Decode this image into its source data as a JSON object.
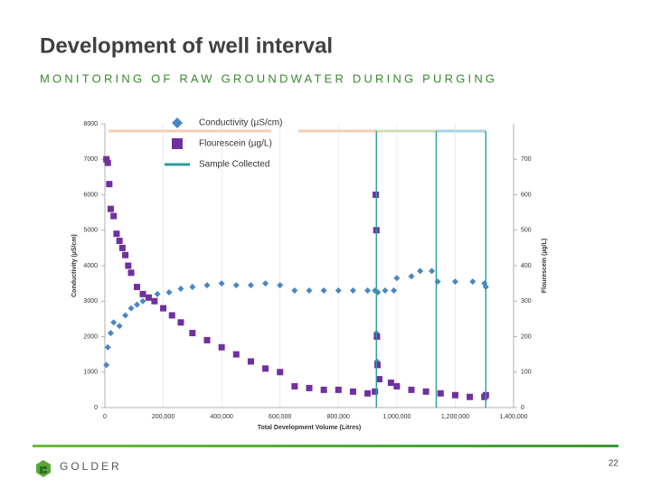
{
  "title": "Development of well interval",
  "subtitle": "MONITORING OF RAW GROUNDWATER DURING PURGING",
  "footer": {
    "brand": "GOLDER",
    "page": "22"
  },
  "chart_data": {
    "type": "scatter",
    "x_label": "Total Development Volume (Litres)",
    "y_label": "Conductivity (µS/cm)",
    "y2_label": "Flourescein (µg/L)",
    "xlim": [
      0,
      1400000
    ],
    "xticks": [
      0,
      {
        "value": 200000,
        "label": "200,000"
      },
      {
        "value": 400000,
        "label": "400,000"
      },
      {
        "value": 600000,
        "label": "600,000"
      },
      {
        "value": 800000,
        "label": "800,000"
      },
      {
        "value": 1000000,
        "label": "1,000,000"
      },
      {
        "value": 1200000,
        "label": "1,200,000"
      },
      {
        "value": 1400000,
        "label": "1,400,000"
      }
    ],
    "ylim": [
      0,
      8000
    ],
    "yticks": [
      0,
      1000,
      2000,
      3000,
      4000,
      5000,
      6000,
      7000,
      8000
    ],
    "y2lim": [
      0,
      800
    ],
    "y2ticks": [
      0,
      100,
      200,
      300,
      400,
      500,
      600,
      700
    ],
    "grid": true,
    "legend": "top-left",
    "series": [
      {
        "name": "Conductivity (µS/cm)",
        "color": "#4a86c5",
        "marker": "diamond",
        "x": [
          5000,
          10000,
          20000,
          30000,
          50000,
          70000,
          90000,
          110000,
          130000,
          150000,
          180000,
          220000,
          260000,
          300000,
          350000,
          400000,
          450000,
          500000,
          550000,
          600000,
          650000,
          700000,
          750000,
          800000,
          850000,
          900000,
          925000,
          930000,
          932000,
          935000,
          960000,
          990000,
          1000000,
          1050000,
          1080000,
          1120000,
          1140000,
          1200000,
          1260000,
          1300000,
          1305000
        ],
        "values": [
          1200,
          1700,
          2100,
          2400,
          2300,
          2600,
          2800,
          2900,
          3000,
          3100,
          3200,
          3250,
          3350,
          3400,
          3450,
          3500,
          3450,
          3450,
          3500,
          3450,
          3300,
          3300,
          3300,
          3300,
          3300,
          3300,
          3300,
          2100,
          1300,
          3250,
          3300,
          3300,
          3650,
          3700,
          3850,
          3850,
          3550,
          3550,
          3550,
          3500,
          3400
        ]
      },
      {
        "name": "Flourescein (µg/L)",
        "color": "#7030a0",
        "marker": "square",
        "axis": "y2",
        "x": [
          5000,
          10000,
          15000,
          20000,
          30000,
          40000,
          50000,
          60000,
          70000,
          80000,
          90000,
          110000,
          130000,
          150000,
          170000,
          200000,
          230000,
          260000,
          300000,
          350000,
          400000,
          450000,
          500000,
          550000,
          600000,
          650000,
          700000,
          750000,
          800000,
          850000,
          900000,
          925000,
          928000,
          930000,
          932000,
          934000,
          940000,
          980000,
          1000000,
          1050000,
          1100000,
          1150000,
          1200000,
          1250000,
          1300000,
          1305000
        ],
        "values": [
          700,
          690,
          630,
          560,
          540,
          490,
          470,
          450,
          430,
          400,
          380,
          340,
          320,
          310,
          300,
          280,
          260,
          240,
          210,
          190,
          170,
          150,
          130,
          110,
          100,
          60,
          55,
          50,
          50,
          45,
          40,
          45,
          600,
          500,
          200,
          120,
          80,
          70,
          60,
          50,
          45,
          40,
          35,
          30,
          30,
          35
        ]
      },
      {
        "name": "Sample Collected",
        "color": "#2b9e9e",
        "marker": "vline",
        "x": [
          930000,
          1135000,
          1305000
        ]
      }
    ]
  }
}
